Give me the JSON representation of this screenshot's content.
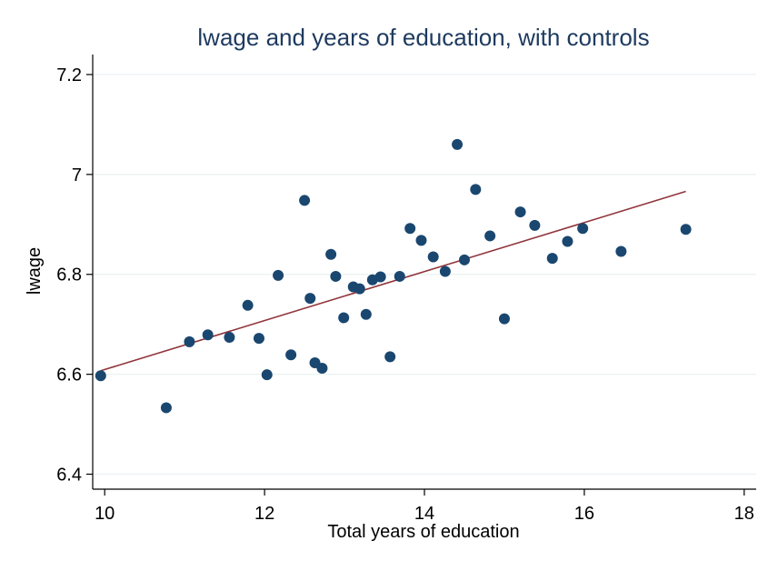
{
  "chart_data": {
    "type": "scatter",
    "title": "lwage and years of education, with controls",
    "xlabel": "Total years of education",
    "ylabel": "lwage",
    "xlim": [
      9.85,
      18.15
    ],
    "ylim": [
      6.37,
      7.24
    ],
    "xticks": [
      "10",
      "12",
      "14",
      "16",
      "18"
    ],
    "yticks": [
      "6.4",
      "6.6",
      "6.8",
      "7",
      "7.2"
    ],
    "grid": true,
    "colors": {
      "points": "#1a476f",
      "fit_line": "#90353b",
      "grid": "#eaf2f3",
      "axis": "#000000"
    },
    "points": [
      {
        "x": 9.95,
        "y": 6.597
      },
      {
        "x": 10.77,
        "y": 6.533
      },
      {
        "x": 11.06,
        "y": 6.665
      },
      {
        "x": 11.29,
        "y": 6.679
      },
      {
        "x": 11.56,
        "y": 6.674
      },
      {
        "x": 11.79,
        "y": 6.738
      },
      {
        "x": 11.93,
        "y": 6.672
      },
      {
        "x": 12.03,
        "y": 6.599
      },
      {
        "x": 12.17,
        "y": 6.798
      },
      {
        "x": 12.33,
        "y": 6.639
      },
      {
        "x": 12.5,
        "y": 6.948
      },
      {
        "x": 12.57,
        "y": 6.752
      },
      {
        "x": 12.63,
        "y": 6.623
      },
      {
        "x": 12.72,
        "y": 6.612
      },
      {
        "x": 12.83,
        "y": 6.84
      },
      {
        "x": 12.89,
        "y": 6.796
      },
      {
        "x": 12.99,
        "y": 6.713
      },
      {
        "x": 13.11,
        "y": 6.775
      },
      {
        "x": 13.19,
        "y": 6.771
      },
      {
        "x": 13.27,
        "y": 6.72
      },
      {
        "x": 13.35,
        "y": 6.789
      },
      {
        "x": 13.45,
        "y": 6.795
      },
      {
        "x": 13.57,
        "y": 6.635
      },
      {
        "x": 13.69,
        "y": 6.796
      },
      {
        "x": 13.82,
        "y": 6.892
      },
      {
        "x": 13.96,
        "y": 6.868
      },
      {
        "x": 14.11,
        "y": 6.835
      },
      {
        "x": 14.26,
        "y": 6.806
      },
      {
        "x": 14.41,
        "y": 7.06
      },
      {
        "x": 14.5,
        "y": 6.829
      },
      {
        "x": 14.64,
        "y": 6.97
      },
      {
        "x": 14.82,
        "y": 6.877
      },
      {
        "x": 15.0,
        "y": 6.711
      },
      {
        "x": 15.2,
        "y": 6.925
      },
      {
        "x": 15.38,
        "y": 6.898
      },
      {
        "x": 15.6,
        "y": 6.832
      },
      {
        "x": 15.79,
        "y": 6.866
      },
      {
        "x": 15.98,
        "y": 6.892
      },
      {
        "x": 16.46,
        "y": 6.846
      },
      {
        "x": 17.27,
        "y": 6.89
      }
    ],
    "fit_line": {
      "x": [
        9.95,
        17.27
      ],
      "y": [
        6.607,
        6.966
      ]
    }
  }
}
